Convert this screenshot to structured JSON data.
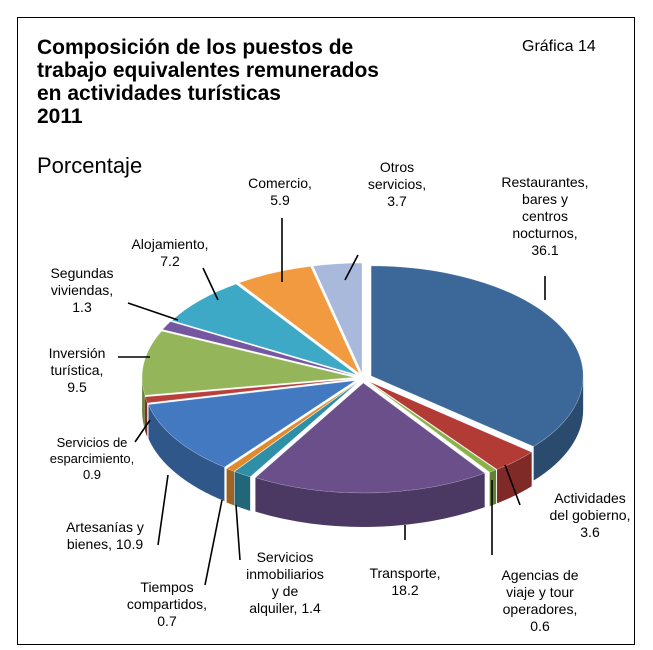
{
  "header": {
    "title_lines": [
      "Composición de los puestos de",
      "trabajo equivalentes remunerados",
      "en actividades turísticas",
      "2011"
    ],
    "subtitle": "Porcentaje",
    "chart_number": "Gráfica 14"
  },
  "chart_data": {
    "type": "pie",
    "style": "3d-exploded",
    "title": "Composición de los puestos de trabajo equivalentes remunerados en actividades turísticas 2011",
    "unit": "Porcentaje",
    "slices": [
      {
        "name": "Restaurantes, bares y centros nocturnos",
        "value": 36.1,
        "color": "#3c6899",
        "label_lines": [
          "Restaurantes,",
          "bares y",
          "centros",
          "nocturnos,",
          "36.1"
        ]
      },
      {
        "name": "Actividades del gobierno",
        "value": 3.6,
        "color": "#b23b36",
        "label_lines": [
          "Actividades",
          "del gobierno,",
          "3.6"
        ]
      },
      {
        "name": "Agencias de viaje y tour operadores",
        "value": 0.6,
        "color": "#8bb24a",
        "label_lines": [
          "Agencias de",
          "viaje y tour",
          "operadores,",
          "0.6"
        ]
      },
      {
        "name": "Transporte",
        "value": 18.2,
        "color": "#6a4f8a",
        "label_lines": [
          "Transporte,",
          "18.2"
        ]
      },
      {
        "name": "Servicios inmobiliarios y de alquiler",
        "value": 1.4,
        "color": "#2f8fa6",
        "label_lines": [
          "Servicios",
          "inmobiliarios",
          "y  de",
          "alquiler, 1.4"
        ]
      },
      {
        "name": "Tiempos compartidos",
        "value": 0.7,
        "color": "#e08a2e",
        "label_lines": [
          "Tiempos",
          "compartidos,",
          "0.7"
        ]
      },
      {
        "name": "Artesanías y bienes",
        "value": 10.9,
        "color": "#4279c0",
        "label_lines": [
          "Artesanías y",
          "bienes, 10.9"
        ]
      },
      {
        "name": "Servicios de esparcimiento",
        "value": 0.9,
        "color": "#b8403b",
        "label_lines": [
          "Servicios de",
          "esparcimiento,",
          "0.9"
        ]
      },
      {
        "name": "Inversión turística",
        "value": 9.5,
        "color": "#94b55a",
        "label_lines": [
          "Inversión",
          "turística,",
          "9.5"
        ]
      },
      {
        "name": "Segundas viviendas",
        "value": 1.3,
        "color": "#7457a0",
        "label_lines": [
          "Segundas",
          "viviendas,",
          "1.3"
        ]
      },
      {
        "name": "Alojamiento",
        "value": 7.2,
        "color": "#3ea9c6",
        "label_lines": [
          "Alojamiento,",
          "7.2"
        ]
      },
      {
        "name": "Comercio",
        "value": 5.9,
        "color": "#f29a40",
        "label_lines": [
          "Comercio,",
          "5.9"
        ]
      },
      {
        "name": "Otros servicios",
        "value": 3.7,
        "color": "#a9b9dc",
        "label_lines": [
          "Otros",
          "servicios,",
          "3.7"
        ]
      }
    ]
  }
}
